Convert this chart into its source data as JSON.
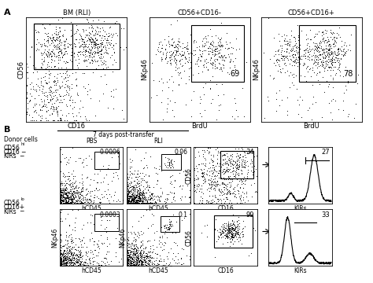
{
  "bg_color": "#ffffff",
  "panel_A": {
    "title_left": "BM (RLI)",
    "title_mid": "CD56+CD16-",
    "title_right": "CD56+CD16+",
    "xlabel_left": "CD16",
    "ylabel_left": "CD56",
    "xlabel_mid": "BrdU",
    "ylabel_nkp46": "NKp46",
    "value_mid": "69",
    "value_right": "78"
  },
  "panel_B": {
    "donor_label": "Donor cells",
    "days_label": "7 days post-transfer",
    "pbs_label": "PBS",
    "rli_label": "RLI",
    "row1_label_1": "CD56",
    "row1_label_2": "hi",
    "row1_label_3": "CD16",
    "row1_label_4": "−",
    "row1_label_5": "KIRs",
    "row1_label_6": "−",
    "row2_label_1": "CD56",
    "row2_label_2": "lo",
    "row2_label_3": "CD16+",
    "row2_label_4": "KIRs",
    "row2_label_5": "−",
    "val_pbs1": "0.0006",
    "val_pbs2": "0.0003",
    "val_rli1": "0.06",
    "val_rli2": "0.1",
    "val_cd16_1": "34",
    "val_cd16_2": "99",
    "val_kir1": "27",
    "val_kir2": "33",
    "xlabel_hcd45": "hCD45",
    "ylabel_nkp46": "NKp46",
    "xlabel_cd16": "CD16",
    "ylabel_cd56": "CD56",
    "xlabel_kir": "KIRs"
  }
}
